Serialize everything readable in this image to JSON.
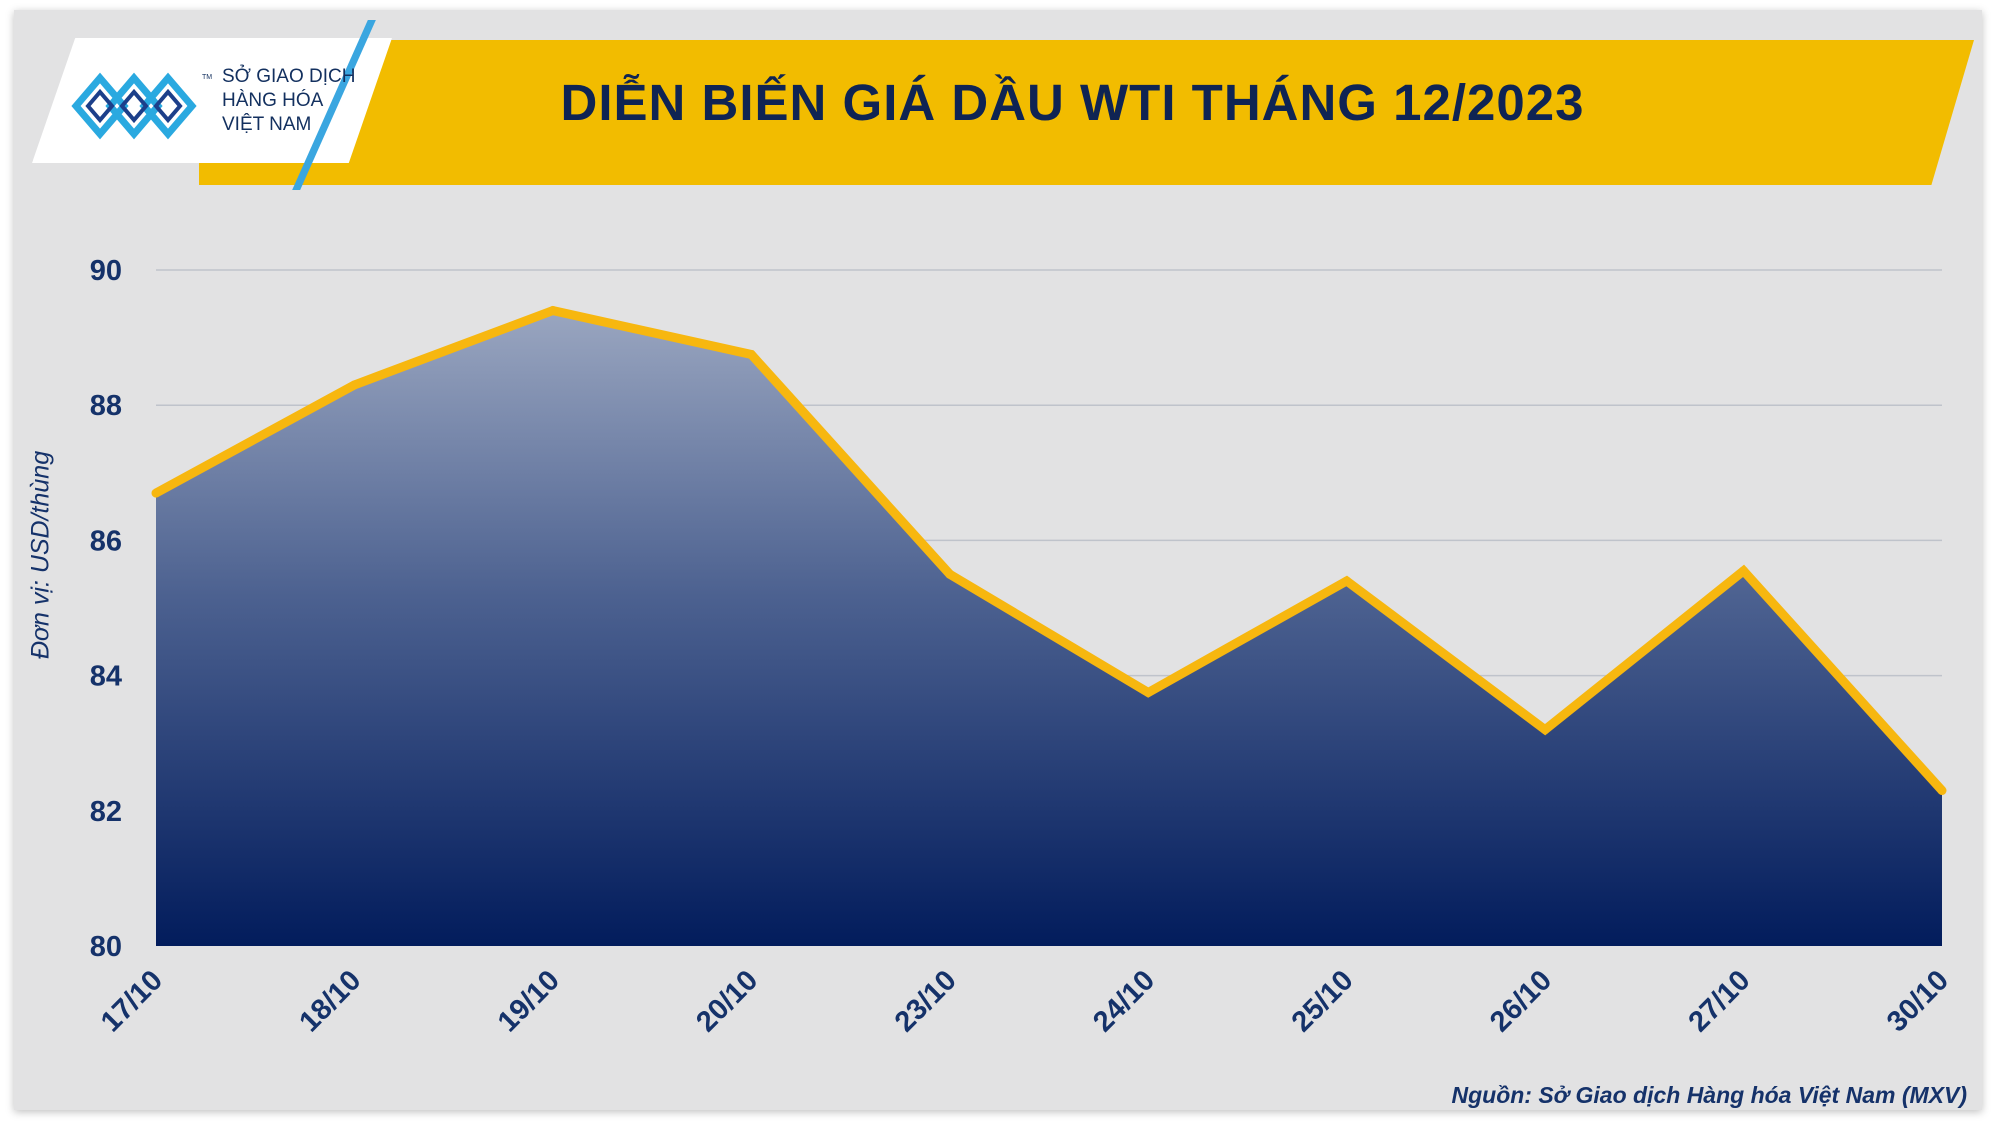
{
  "header": {
    "title": "DIỄN BIẾN GIÁ DẦU WTI THÁNG 12/2023",
    "logo_line1": "SỞ GIAO DỊCH",
    "logo_line2": "HÀNG HÓA",
    "logo_line3": "VIỆT NAM",
    "logo_tm": "TM"
  },
  "footer": {
    "source": "Nguồn: Sở Giao dịch Hàng hóa Việt Nam (MXV)"
  },
  "colors": {
    "banner": "#f2bc00",
    "line": "#f7b70f",
    "area_top": "#9aa6c0",
    "area_bottom": "#021c5c",
    "text": "#15326a"
  },
  "chart_data": {
    "type": "area",
    "title": "DIỄN BIẾN GIÁ DẦU WTI THÁNG 12/2023",
    "ylabel": "Đơn vị: USD/thùng",
    "xlabel": "",
    "categories": [
      "17/10",
      "18/10",
      "19/10",
      "20/10",
      "23/10",
      "24/10",
      "25/10",
      "26/10",
      "27/10",
      "30/10"
    ],
    "series": [
      {
        "values": [
          86.7,
          88.3,
          89.4,
          88.75,
          85.5,
          83.75,
          85.4,
          83.2,
          85.55,
          82.3
        ]
      }
    ],
    "ylim": [
      80,
      90
    ],
    "yticks": [
      80,
      82,
      84,
      86,
      88,
      90
    ],
    "grid": true,
    "legend": "none"
  }
}
